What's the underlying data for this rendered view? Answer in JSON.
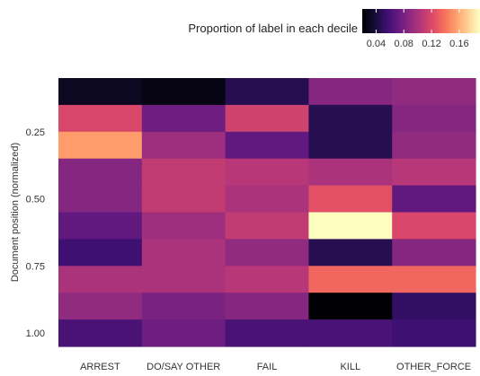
{
  "chart_data": {
    "type": "heatmap",
    "title": "",
    "xlabel": "",
    "ylabel": "Document position (normalized)",
    "categories": [
      "ARREST",
      "DO/SAY OTHER",
      "FAIL",
      "KILL",
      "OTHER_FORCE"
    ],
    "y_range": [
      0,
      1
    ],
    "y_reversed": true,
    "y_ticks": [
      0.25,
      0.5,
      0.75,
      1.0
    ],
    "y_tick_labels": [
      "0.25",
      "0.50",
      "0.75",
      "1.00"
    ],
    "row_count": 10,
    "values": [
      [
        0.03,
        0.025,
        0.045,
        0.085,
        0.09
      ],
      [
        0.12,
        0.075,
        0.115,
        0.045,
        0.085
      ],
      [
        0.155,
        0.095,
        0.07,
        0.045,
        0.09
      ],
      [
        0.085,
        0.11,
        0.105,
        0.1,
        0.105
      ],
      [
        0.085,
        0.11,
        0.1,
        0.125,
        0.07
      ],
      [
        0.07,
        0.095,
        0.11,
        0.19,
        0.12
      ],
      [
        0.055,
        0.1,
        0.09,
        0.045,
        0.085
      ],
      [
        0.1,
        0.1,
        0.105,
        0.135,
        0.135
      ],
      [
        0.09,
        0.08,
        0.085,
        0.01,
        0.05
      ],
      [
        0.06,
        0.075,
        0.06,
        0.06,
        0.055
      ]
    ],
    "colorscale": "magma",
    "color_range": [
      0.02,
      0.19
    ],
    "legend": {
      "title": "Proportion of label in each decile",
      "ticks": [
        0.04,
        0.08,
        0.12,
        0.16
      ],
      "tick_labels": [
        "0.04",
        "0.08",
        "0.12",
        "0.16"
      ],
      "placement": "top-right"
    },
    "grid": false
  }
}
